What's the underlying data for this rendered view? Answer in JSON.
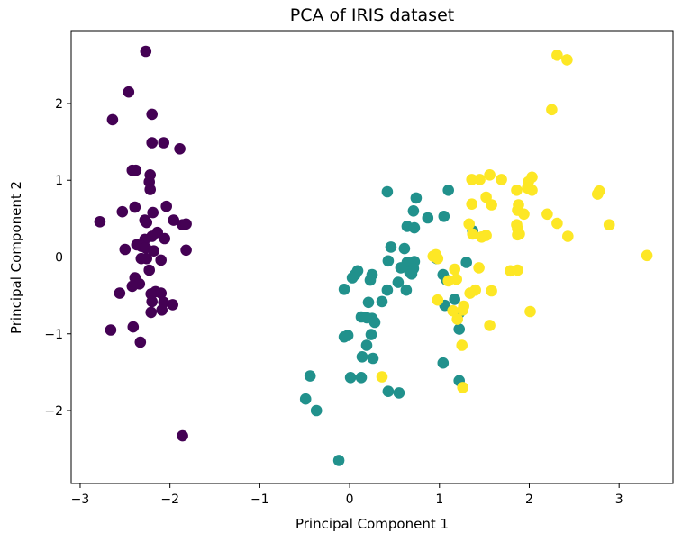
{
  "chart_data": {
    "type": "scatter",
    "title": "PCA of IRIS dataset",
    "xlabel": "Principal Component 1",
    "ylabel": "Principal Component 2",
    "xlim": [
      -3.1,
      3.6
    ],
    "ylim": [
      -2.95,
      2.95
    ],
    "xticks": [
      -3,
      -2,
      -1,
      0,
      1,
      2,
      3
    ],
    "yticks": [
      -2,
      -1,
      0,
      1,
      2
    ],
    "grid": false,
    "legend": "none",
    "colors": [
      "#440154",
      "#21918c",
      "#fde725"
    ],
    "series": [
      {
        "color": "#440154",
        "points": [
          [
            -2.27,
            2.68
          ],
          [
            -2.46,
            2.15
          ],
          [
            -2.64,
            1.79
          ],
          [
            -2.2,
            1.86
          ],
          [
            -2.2,
            1.49
          ],
          [
            -2.07,
            1.49
          ],
          [
            -1.89,
            1.41
          ],
          [
            -2.42,
            1.13
          ],
          [
            -2.38,
            1.13
          ],
          [
            -2.22,
            1.07
          ],
          [
            -2.23,
            0.98
          ],
          [
            -2.22,
            0.88
          ],
          [
            -2.39,
            0.65
          ],
          [
            -2.53,
            0.59
          ],
          [
            -2.04,
            0.66
          ],
          [
            -2.19,
            0.58
          ],
          [
            -2.78,
            0.46
          ],
          [
            -2.28,
            0.48
          ],
          [
            -2.26,
            0.45
          ],
          [
            -1.96,
            0.48
          ],
          [
            -1.86,
            0.42
          ],
          [
            -1.82,
            0.43
          ],
          [
            -2.14,
            0.32
          ],
          [
            -2.2,
            0.27
          ],
          [
            -2.06,
            0.24
          ],
          [
            -2.28,
            0.23
          ],
          [
            -2.37,
            0.16
          ],
          [
            -2.32,
            0.14
          ],
          [
            -2.27,
            0.12
          ],
          [
            -2.5,
            0.1
          ],
          [
            -1.82,
            0.09
          ],
          [
            -2.18,
            0.08
          ],
          [
            -2.32,
            -0.02
          ],
          [
            -2.26,
            -0.02
          ],
          [
            -2.1,
            -0.04
          ],
          [
            -2.23,
            -0.17
          ],
          [
            -2.39,
            -0.27
          ],
          [
            -2.34,
            -0.35
          ],
          [
            -2.42,
            -0.38
          ],
          [
            -2.16,
            -0.45
          ],
          [
            -2.1,
            -0.47
          ],
          [
            -2.21,
            -0.48
          ],
          [
            -2.56,
            -0.47
          ],
          [
            -2.2,
            -0.58
          ],
          [
            -2.07,
            -0.59
          ],
          [
            -1.97,
            -0.62
          ],
          [
            -2.09,
            -0.69
          ],
          [
            -2.21,
            -0.72
          ],
          [
            -2.41,
            -0.91
          ],
          [
            -2.66,
            -0.95
          ],
          [
            -2.33,
            -1.11
          ],
          [
            -1.86,
            -2.33
          ]
        ]
      },
      {
        "color": "#21918c",
        "points": [
          [
            0.42,
            0.85
          ],
          [
            1.1,
            0.87
          ],
          [
            0.74,
            0.77
          ],
          [
            0.71,
            0.6
          ],
          [
            0.87,
            0.51
          ],
          [
            1.05,
            0.53
          ],
          [
            0.64,
            0.4
          ],
          [
            0.72,
            0.38
          ],
          [
            1.37,
            0.34
          ],
          [
            0.61,
            0.11
          ],
          [
            0.96,
            0.02
          ],
          [
            0.97,
            -0.02
          ],
          [
            0.46,
            0.13
          ],
          [
            0.72,
            -0.06
          ],
          [
            0.64,
            -0.07
          ],
          [
            0.43,
            -0.05
          ],
          [
            0.57,
            -0.14
          ],
          [
            0.71,
            -0.15
          ],
          [
            0.67,
            -0.2
          ],
          [
            1.04,
            -0.23
          ],
          [
            1.3,
            -0.07
          ],
          [
            1.08,
            -0.3
          ],
          [
            0.09,
            -0.18
          ],
          [
            0.06,
            -0.23
          ],
          [
            0.25,
            -0.23
          ],
          [
            0.23,
            -0.3
          ],
          [
            0.03,
            -0.27
          ],
          [
            0.69,
            -0.22
          ],
          [
            0.54,
            -0.33
          ],
          [
            -0.06,
            -0.42
          ],
          [
            0.42,
            -0.43
          ],
          [
            0.63,
            -0.43
          ],
          [
            0.21,
            -0.59
          ],
          [
            1.17,
            -0.55
          ],
          [
            0.36,
            -0.58
          ],
          [
            0.25,
            -0.8
          ],
          [
            0.13,
            -0.78
          ],
          [
            0.19,
            -0.79
          ],
          [
            0.28,
            -0.85
          ],
          [
            1.06,
            -0.63
          ],
          [
            1.22,
            -0.73
          ],
          [
            1.22,
            -0.94
          ],
          [
            -0.02,
            -1.02
          ],
          [
            -0.06,
            -1.04
          ],
          [
            0.24,
            -1.01
          ],
          [
            0.19,
            -1.15
          ],
          [
            0.14,
            -1.3
          ],
          [
            0.26,
            -1.32
          ],
          [
            1.04,
            -1.38
          ],
          [
            -0.44,
            -1.55
          ],
          [
            0.01,
            -1.57
          ],
          [
            0.13,
            -1.57
          ],
          [
            1.22,
            -1.61
          ],
          [
            -0.49,
            -1.85
          ],
          [
            0.43,
            -1.75
          ],
          [
            0.55,
            -1.77
          ],
          [
            -0.37,
            -2.0
          ],
          [
            -0.12,
            -2.65
          ]
        ]
      },
      {
        "color": "#fde725",
        "points": [
          [
            2.31,
            2.63
          ],
          [
            2.42,
            2.57
          ],
          [
            2.25,
            1.92
          ],
          [
            1.56,
            1.07
          ],
          [
            1.36,
            1.01
          ],
          [
            1.45,
            1.01
          ],
          [
            1.69,
            1.01
          ],
          [
            1.99,
            0.98
          ],
          [
            2.03,
            1.04
          ],
          [
            1.86,
            0.87
          ],
          [
            1.52,
            0.78
          ],
          [
            1.98,
            0.9
          ],
          [
            2.03,
            0.87
          ],
          [
            2.78,
            0.86
          ],
          [
            2.76,
            0.82
          ],
          [
            1.36,
            0.69
          ],
          [
            1.58,
            0.68
          ],
          [
            1.88,
            0.68
          ],
          [
            1.87,
            0.61
          ],
          [
            2.2,
            0.56
          ],
          [
            1.94,
            0.56
          ],
          [
            2.31,
            0.44
          ],
          [
            1.33,
            0.43
          ],
          [
            1.86,
            0.42
          ],
          [
            2.89,
            0.42
          ],
          [
            1.87,
            0.37
          ],
          [
            1.37,
            0.3
          ],
          [
            1.52,
            0.28
          ],
          [
            1.89,
            0.3
          ],
          [
            1.87,
            0.29
          ],
          [
            1.47,
            0.26
          ],
          [
            2.43,
            0.27
          ],
          [
            0.93,
            0.01
          ],
          [
            0.96,
            0.03
          ],
          [
            0.98,
            -0.02
          ],
          [
            3.31,
            0.02
          ],
          [
            1.44,
            -0.14
          ],
          [
            1.17,
            -0.16
          ],
          [
            1.79,
            -0.18
          ],
          [
            1.87,
            -0.17
          ],
          [
            1.1,
            -0.31
          ],
          [
            1.19,
            -0.29
          ],
          [
            1.4,
            -0.43
          ],
          [
            1.34,
            -0.47
          ],
          [
            1.58,
            -0.44
          ],
          [
            0.98,
            -0.56
          ],
          [
            1.27,
            -0.64
          ],
          [
            1.15,
            -0.7
          ],
          [
            1.26,
            -0.69
          ],
          [
            2.01,
            -0.71
          ],
          [
            1.2,
            -0.81
          ],
          [
            1.56,
            -0.89
          ],
          [
            1.25,
            -1.15
          ],
          [
            0.36,
            -1.56
          ],
          [
            1.26,
            -1.7
          ]
        ]
      }
    ]
  }
}
